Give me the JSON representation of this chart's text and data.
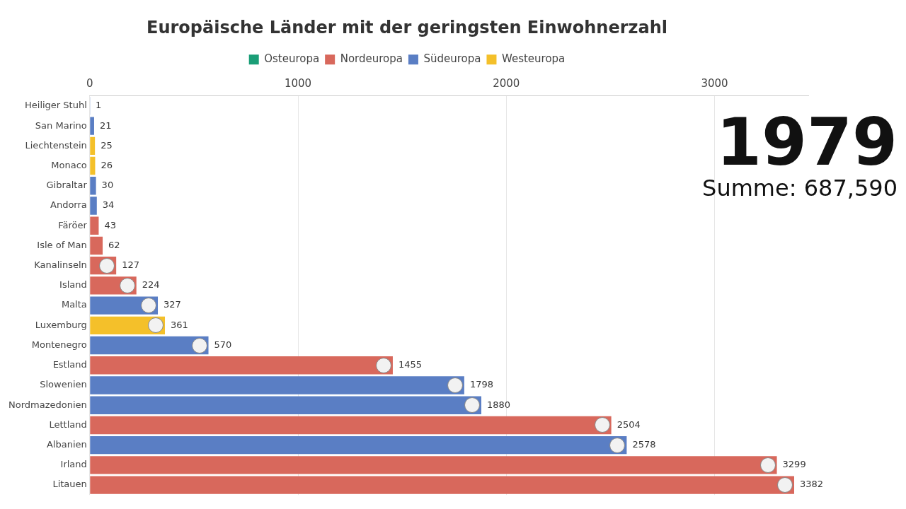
{
  "chart_data": {
    "type": "bar",
    "orientation": "horizontal",
    "stacked": true,
    "title": "Europäische Länder mit der geringsten Einwohnerzahl",
    "categories": [
      "Heiliger Stuhl",
      "San Marino",
      "Liechtenstein",
      "Monaco",
      "Gibraltar",
      "Andorra",
      "Färöer",
      "Isle of Man",
      "Kanalinseln",
      "Island",
      "Malta",
      "Luxemburg",
      "Montenegro",
      "Estland",
      "Slowenien",
      "Nordmazedonien",
      "Lettland",
      "Albanien",
      "Irland",
      "Litauen"
    ],
    "series": [
      {
        "name": "Osteuropa",
        "color": "#1a9e77",
        "values": [
          null,
          null,
          null,
          null,
          null,
          null,
          null,
          null,
          null,
          null,
          null,
          null,
          null,
          null,
          null,
          null,
          null,
          null,
          null,
          null
        ]
      },
      {
        "name": "Nordeuropa",
        "color": "#d8685c",
        "values": [
          null,
          null,
          null,
          null,
          null,
          null,
          43,
          62,
          127,
          224,
          null,
          null,
          null,
          1455,
          null,
          null,
          2504,
          null,
          3299,
          3382
        ]
      },
      {
        "name": "Südeuropa",
        "color": "#5a7ec4",
        "values": [
          1,
          21,
          null,
          null,
          30,
          34,
          null,
          null,
          null,
          null,
          327,
          null,
          570,
          null,
          1798,
          1880,
          null,
          2578,
          null,
          null
        ]
      },
      {
        "name": "Westeuropa",
        "color": "#f4c02a",
        "values": [
          null,
          null,
          25,
          26,
          null,
          null,
          null,
          null,
          null,
          null,
          null,
          361,
          null,
          null,
          null,
          null,
          null,
          null,
          null,
          null
        ]
      }
    ],
    "xlim": [
      0,
      3450
    ],
    "xticks": [
      0,
      1000,
      2000,
      3000
    ],
    "grid": "x",
    "legend": "top",
    "data_labels": true,
    "annotations": [
      "1979",
      "Summe: 687,590"
    ]
  }
}
